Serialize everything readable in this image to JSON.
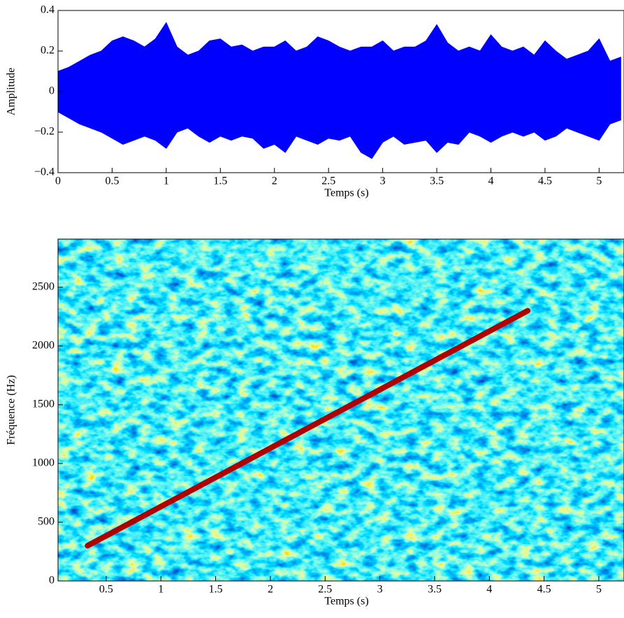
{
  "chart_data": [
    {
      "type": "area",
      "x": [
        0,
        0.1,
        0.2,
        0.3,
        0.4,
        0.5,
        0.6,
        0.7,
        0.8,
        0.9,
        1.0,
        1.1,
        1.2,
        1.3,
        1.4,
        1.5,
        1.6,
        1.7,
        1.8,
        1.9,
        2.0,
        2.1,
        2.2,
        2.3,
        2.4,
        2.5,
        2.6,
        2.7,
        2.8,
        2.9,
        3.0,
        3.1,
        3.2,
        3.3,
        3.4,
        3.5,
        3.6,
        3.7,
        3.8,
        3.9,
        4.0,
        4.1,
        4.2,
        4.3,
        4.4,
        4.5,
        4.6,
        4.7,
        4.8,
        4.9,
        5.0,
        5.1,
        5.2
      ],
      "series": [
        {
          "color": "#0000ff",
          "values": [
            0.1,
            0.12,
            0.15,
            0.18,
            0.2,
            0.25,
            0.27,
            0.25,
            0.22,
            0.26,
            0.34,
            0.22,
            0.18,
            0.2,
            0.25,
            0.26,
            0.22,
            0.23,
            0.2,
            0.22,
            0.22,
            0.25,
            0.2,
            0.22,
            0.27,
            0.25,
            0.22,
            0.2,
            0.22,
            0.22,
            0.25,
            0.2,
            0.22,
            0.22,
            0.25,
            0.33,
            0.24,
            0.2,
            0.22,
            0.2,
            0.28,
            0.22,
            0.2,
            0.22,
            0.18,
            0.25,
            0.2,
            0.16,
            0.18,
            0.2,
            0.26,
            0.15,
            0.17
          ]
        },
        {
          "color": "#0000ff",
          "values": [
            -0.1,
            -0.13,
            -0.16,
            -0.18,
            -0.2,
            -0.23,
            -0.26,
            -0.24,
            -0.22,
            -0.24,
            -0.28,
            -0.2,
            -0.18,
            -0.22,
            -0.25,
            -0.22,
            -0.24,
            -0.22,
            -0.23,
            -0.28,
            -0.26,
            -0.3,
            -0.22,
            -0.24,
            -0.26,
            -0.23,
            -0.24,
            -0.22,
            -0.3,
            -0.33,
            -0.25,
            -0.22,
            -0.26,
            -0.25,
            -0.24,
            -0.3,
            -0.25,
            -0.26,
            -0.2,
            -0.22,
            -0.25,
            -0.22,
            -0.2,
            -0.22,
            -0.2,
            -0.24,
            -0.22,
            -0.18,
            -0.2,
            -0.22,
            -0.24,
            -0.16,
            -0.14
          ]
        }
      ],
      "xlabel": "Temps (s)",
      "ylabel": "Amplitude",
      "xlim": [
        0,
        5.23
      ],
      "ylim": [
        -0.4,
        0.4
      ],
      "xticks": [
        0,
        0.5,
        1,
        1.5,
        2,
        2.5,
        3,
        3.5,
        4,
        4.5,
        5
      ],
      "yticks": [
        {
          "value": -0.4,
          "label": "−0.4"
        },
        {
          "value": -0.2,
          "label": "−0.2"
        },
        0,
        0.2,
        0.4
      ]
    },
    {
      "type": "spectrogram",
      "series": [
        {
          "color": "#b00000",
          "x": [
            0.33,
            4.35
          ],
          "y": [
            300,
            2300
          ]
        }
      ],
      "xlabel": "Temps (s)",
      "ylabel": "Fréquence (Hz)",
      "xlim": [
        0.06,
        5.23
      ],
      "ylim": [
        0,
        2910
      ],
      "xticks": [
        0.5,
        1,
        1.5,
        2,
        2.5,
        3,
        3.5,
        4,
        4.5,
        5
      ],
      "yticks": [
        0,
        500,
        1000,
        1500,
        2000,
        2500
      ]
    }
  ]
}
